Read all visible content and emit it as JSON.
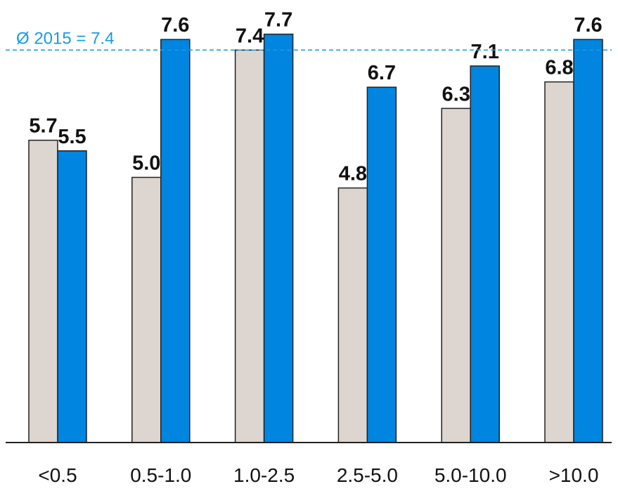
{
  "colors": {
    "series_1": "#ddd5cf",
    "series_2": "#0085e0",
    "bar_stroke": "#222222",
    "reference_line": "#1a9be3",
    "axis": "#222222"
  },
  "chart_data": {
    "type": "bar",
    "categories": [
      "<0.5",
      "0.5-1.0",
      "1.0-2.5",
      "2.5-5.0",
      "5.0-10.0",
      ">10.0"
    ],
    "series": [
      {
        "values": [
          5.7,
          5.0,
          7.4,
          4.8,
          6.3,
          6.8
        ],
        "labels": [
          "5.7",
          "5.0",
          "7.4",
          "4.8",
          "6.3",
          "6.8"
        ]
      },
      {
        "values": [
          5.5,
          7.6,
          7.7,
          6.7,
          7.1,
          7.6
        ],
        "labels": [
          "5.5",
          "7.6",
          "7.7",
          "6.7",
          "7.1",
          "7.6"
        ]
      }
    ],
    "reference_line": {
      "value": 7.4,
      "label": "Ø 2015 = 7.4"
    },
    "ylim": [
      0,
      8.2
    ],
    "grid": false,
    "legend": "none"
  }
}
